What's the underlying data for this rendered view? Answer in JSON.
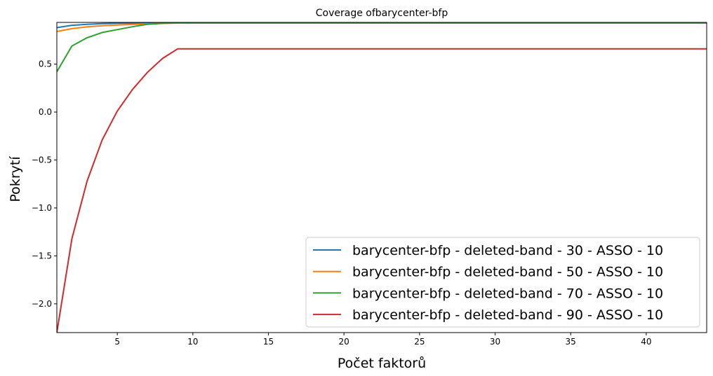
{
  "chart_data": {
    "type": "line",
    "title": "Coverage ofbarycenter-bfp",
    "xlabel": "Počet faktorů",
    "ylabel": "Pokrytí",
    "xlim": [
      1,
      44
    ],
    "ylim": [
      -2.3,
      0.935
    ],
    "xticks": [
      5,
      10,
      15,
      20,
      25,
      30,
      35,
      40
    ],
    "xtick_labels": [
      "5",
      "10",
      "15",
      "20",
      "25",
      "30",
      "35",
      "40"
    ],
    "yticks": [
      -2.0,
      -1.5,
      -1.0,
      -0.5,
      0.0,
      0.5
    ],
    "ytick_labels": [
      "−2.0",
      "−1.5",
      "−1.0",
      "−0.5",
      "0.0",
      "0.5"
    ],
    "grid": false,
    "legend_position": "lower-right",
    "series": [
      {
        "name": "barycenter-bfp - deleted-band - 30 - ASSO - 10",
        "color": "#1f77b4",
        "x": [
          1,
          2,
          3,
          4,
          5,
          6,
          7,
          8,
          9,
          10,
          44
        ],
        "y": [
          0.88,
          0.905,
          0.915,
          0.922,
          0.926,
          0.928,
          0.929,
          0.93,
          0.93,
          0.93,
          0.93
        ]
      },
      {
        "name": "barycenter-bfp - deleted-band - 50 - ASSO - 10",
        "color": "#ff7f0e",
        "x": [
          1,
          2,
          3,
          4,
          5,
          6,
          7,
          8,
          9,
          10,
          44
        ],
        "y": [
          0.84,
          0.87,
          0.888,
          0.9,
          0.908,
          0.914,
          0.92,
          0.925,
          0.928,
          0.93,
          0.93
        ]
      },
      {
        "name": "barycenter-bfp - deleted-band - 70 - ASSO - 10",
        "color": "#2ca02c",
        "x": [
          1,
          2,
          3,
          4,
          5,
          6,
          7,
          8,
          9,
          10,
          44
        ],
        "y": [
          0.42,
          0.69,
          0.775,
          0.83,
          0.86,
          0.89,
          0.915,
          0.925,
          0.93,
          0.93,
          0.93
        ]
      },
      {
        "name": "barycenter-bfp - deleted-band - 90 - ASSO - 10",
        "color": "#d62728",
        "x": [
          1,
          2,
          3,
          4,
          5,
          6,
          7,
          8,
          9,
          10,
          44
        ],
        "y": [
          -2.3,
          -1.32,
          -0.72,
          -0.29,
          0.01,
          0.235,
          0.415,
          0.56,
          0.66,
          0.66,
          0.66
        ]
      }
    ]
  }
}
